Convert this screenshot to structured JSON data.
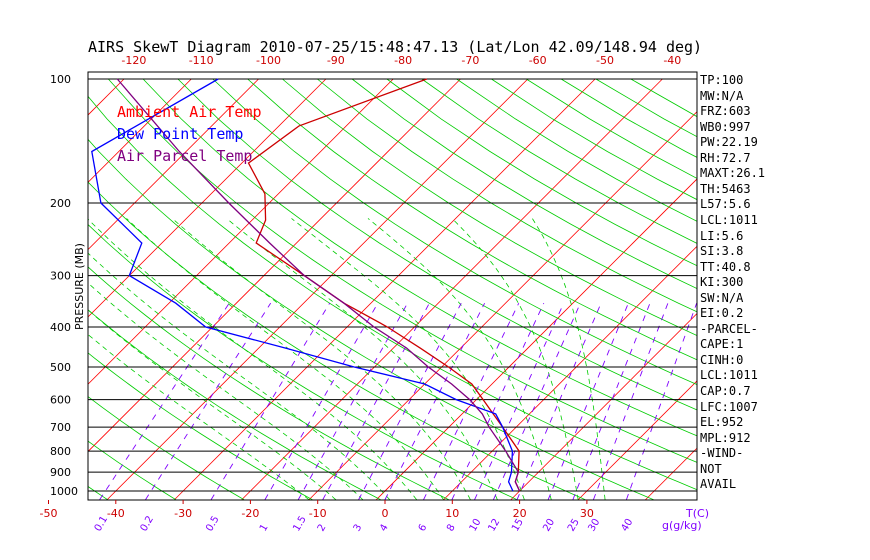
{
  "chart_data": {
    "type": "line",
    "title": "AIRS SkewT Diagram 2010-07-25/15:48:47.13 (Lat/Lon 42.09/148.94 deg)",
    "ylabel": "PRESSURE (MB)",
    "xlabel": "T(C)",
    "mixing_label": "g(g/kg)",
    "ylim": [
      1000,
      100
    ],
    "pressure_ticks": [
      100,
      200,
      300,
      400,
      500,
      600,
      700,
      800,
      900,
      1000
    ],
    "bottom_temp_ticks": [
      -50,
      -40,
      -30,
      -20,
      -10,
      0,
      10,
      20,
      30
    ],
    "top_temp_ticks": [
      -120,
      -110,
      -100,
      -90,
      -80,
      -70,
      -60,
      -50,
      -40
    ],
    "mixing_ratio_ticks": [
      "0.1",
      "0.2",
      "0.5",
      "1",
      "1.5",
      "2",
      "3",
      "4",
      "6",
      "8",
      "10",
      "12",
      "15",
      "20",
      "25",
      "30",
      "40"
    ],
    "legend": [
      {
        "label": "Ambient Air Temp",
        "color": "#ff0000"
      },
      {
        "label": "Dew Point Temp",
        "color": "#0000ff"
      },
      {
        "label": "Air Parcel Temp",
        "color": "#800080"
      }
    ],
    "series": [
      {
        "name": "Ambient Air Temp",
        "color": "#cc0000",
        "points": [
          [
            100,
            -55
          ],
          [
            130,
            -67
          ],
          [
            160,
            -69
          ],
          [
            190,
            -62
          ],
          [
            220,
            -58
          ],
          [
            250,
            -56
          ],
          [
            300,
            -44
          ],
          [
            350,
            -34
          ],
          [
            400,
            -24
          ],
          [
            450,
            -16
          ],
          [
            500,
            -9
          ],
          [
            550,
            -3
          ],
          [
            600,
            1
          ],
          [
            700,
            8
          ],
          [
            800,
            14
          ],
          [
            900,
            17
          ],
          [
            950,
            18
          ],
          [
            1000,
            20
          ]
        ]
      },
      {
        "name": "Dew Point Temp",
        "color": "#0000ff",
        "points": [
          [
            100,
            -86
          ],
          [
            150,
            -94
          ],
          [
            200,
            -85
          ],
          [
            250,
            -73
          ],
          [
            300,
            -70
          ],
          [
            350,
            -59
          ],
          [
            400,
            -51
          ],
          [
            450,
            -36
          ],
          [
            500,
            -23
          ],
          [
            550,
            -10
          ],
          [
            600,
            -3
          ],
          [
            650,
            5
          ],
          [
            700,
            8
          ],
          [
            800,
            13
          ],
          [
            900,
            16
          ],
          [
            950,
            17
          ],
          [
            1000,
            19
          ]
        ]
      },
      {
        "name": "Air Parcel Temp",
        "color": "#800080",
        "points": [
          [
            100,
            -101
          ],
          [
            150,
            -81
          ],
          [
            200,
            -66
          ],
          [
            250,
            -54
          ],
          [
            300,
            -44
          ],
          [
            350,
            -34
          ],
          [
            400,
            -26
          ],
          [
            450,
            -18
          ],
          [
            500,
            -12
          ],
          [
            550,
            -6
          ],
          [
            600,
            -1
          ],
          [
            650,
            3
          ],
          [
            700,
            6
          ],
          [
            800,
            12
          ],
          [
            900,
            17
          ],
          [
            950,
            18
          ],
          [
            1000,
            20
          ]
        ]
      }
    ]
  },
  "indices": [
    "TP:100",
    "MW:N/A",
    "FRZ:603",
    "WB0:997",
    "PW:22.19",
    "RH:72.7",
    "MAXT:26.1",
    "TH:5463",
    "L57:5.6",
    "LCL:1011",
    "LI:5.6",
    "SI:3.8",
    "TT:40.8",
    "KI:300",
    "SW:N/A",
    "EI:0.2",
    "-PARCEL-",
    "CAPE:1",
    "CINH:0",
    "LCL:1011",
    "CAP:0.7",
    "LFC:1007",
    "EL:952",
    "MPL:912",
    "-WIND-",
    "NOT",
    "AVAIL"
  ],
  "colors": {
    "isotherm": "#ff0000",
    "dry_adiabat": "#00cc00",
    "moist_adiabat": "#00cc00",
    "mixing_ratio": "#8000ff",
    "isobar": "#000000"
  }
}
